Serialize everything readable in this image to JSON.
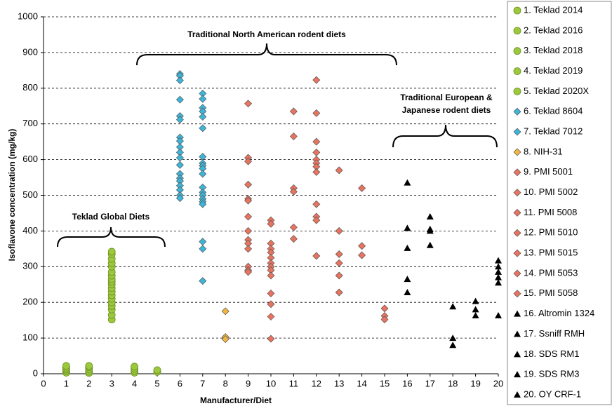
{
  "chart_data": {
    "type": "scatter",
    "x_label": "Manufacturer/Diet",
    "y_label": "Isoflavone concentration (mg/kg)",
    "xlim": [
      0,
      20
    ],
    "xticks": [
      0,
      1,
      2,
      3,
      4,
      5,
      6,
      7,
      8,
      9,
      10,
      11,
      12,
      13,
      14,
      15,
      16,
      17,
      18,
      19,
      20
    ],
    "ylim": [
      0,
      1000
    ],
    "yticks": [
      0,
      100,
      200,
      300,
      400,
      500,
      600,
      700,
      800,
      900,
      1000
    ],
    "grid": true,
    "legend": "right",
    "annotations": [
      "Traditional North American rodent diets",
      "Teklad Global Diets",
      "Traditional European &",
      "Japanese rodent diets"
    ],
    "series": [
      {
        "name": "1. Teklad 2014",
        "color": "#9bc83c",
        "marker": "circle",
        "x": [
          1,
          1,
          1,
          1,
          1
        ],
        "values": [
          3,
          8,
          12,
          17,
          22
        ]
      },
      {
        "name": "2. Teklad 2016",
        "color": "#9bc83c",
        "marker": "circle",
        "x": [
          2,
          2,
          2,
          2,
          2
        ],
        "values": [
          2,
          6,
          12,
          18,
          22
        ]
      },
      {
        "name": "3. Teklad 2018",
        "color": "#9bc83c",
        "marker": "circle",
        "x": [
          3,
          3,
          3,
          3,
          3,
          3,
          3,
          3,
          3,
          3,
          3,
          3,
          3,
          3,
          3,
          3,
          3,
          3,
          3
        ],
        "values": [
          152,
          165,
          180,
          190,
          200,
          210,
          220,
          230,
          240,
          250,
          258,
          265,
          275,
          285,
          300,
          310,
          322,
          335,
          342
        ]
      },
      {
        "name": "4. Teklad 2019",
        "color": "#9bc83c",
        "marker": "circle",
        "x": [
          4,
          4,
          4,
          4
        ],
        "values": [
          3,
          8,
          14,
          20
        ]
      },
      {
        "name": "5. Teklad 2020X",
        "color": "#9bc83c",
        "marker": "circle",
        "x": [
          5,
          5
        ],
        "values": [
          5,
          10
        ]
      },
      {
        "name": "6. Teklad 8604",
        "color": "#3db5d8",
        "marker": "diamond",
        "x": [
          6,
          6,
          6,
          6,
          6,
          6,
          6,
          6,
          6,
          6,
          6,
          6,
          6,
          6,
          6,
          6,
          6,
          6,
          6
        ],
        "values": [
          840,
          835,
          822,
          768,
          722,
          712,
          662,
          652,
          635,
          620,
          605,
          585,
          560,
          548,
          540,
          527,
          515,
          500,
          492
        ]
      },
      {
        "name": "7. Teklad 7012",
        "color": "#3db5d8",
        "marker": "diamond",
        "x": [
          7,
          7,
          7,
          7,
          7,
          7,
          7,
          7,
          7,
          7,
          7,
          7,
          7,
          7,
          7,
          7,
          7,
          7,
          7,
          7
        ],
        "values": [
          785,
          770,
          745,
          735,
          720,
          688,
          608,
          590,
          583,
          575,
          560,
          522,
          508,
          500,
          490,
          482,
          475,
          370,
          350,
          260
        ]
      },
      {
        "name": "8. NIH-31",
        "color": "#f2b540",
        "marker": "diamond",
        "x": [
          8,
          8,
          8
        ],
        "values": [
          175,
          103,
          97
        ]
      },
      {
        "name": "9. PMI 5001",
        "color": "#e8735f",
        "marker": "diamond",
        "x": [
          9,
          9,
          9,
          9,
          9,
          9,
          9,
          9,
          9,
          9,
          9,
          9,
          9,
          9
        ],
        "values": [
          757,
          605,
          595,
          530,
          490,
          485,
          440,
          400,
          375,
          365,
          350,
          300,
          290,
          285
        ]
      },
      {
        "name": "10. PMI 5002",
        "color": "#e8735f",
        "marker": "diamond",
        "x": [
          10,
          10,
          10,
          10,
          10,
          10,
          10,
          10,
          10,
          10,
          10,
          10,
          10,
          10
        ],
        "values": [
          430,
          420,
          365,
          350,
          340,
          325,
          310,
          300,
          290,
          275,
          225,
          195,
          160,
          98
        ]
      },
      {
        "name": "11. PMI 5008",
        "color": "#e8735f",
        "marker": "diamond",
        "x": [
          11,
          11,
          11,
          11,
          11,
          11
        ],
        "values": [
          735,
          665,
          520,
          510,
          410,
          378
        ]
      },
      {
        "name": "12. PMI 5010",
        "color": "#e8735f",
        "marker": "diamond",
        "x": [
          12,
          12,
          12,
          12,
          12,
          12,
          12,
          12,
          12,
          12,
          12,
          12
        ],
        "values": [
          823,
          730,
          650,
          620,
          600,
          590,
          580,
          565,
          475,
          440,
          430,
          330
        ]
      },
      {
        "name": "13. PMI 5015",
        "color": "#e8735f",
        "marker": "diamond",
        "x": [
          13,
          13,
          13,
          13,
          13,
          13
        ],
        "values": [
          570,
          400,
          335,
          310,
          275,
          228
        ]
      },
      {
        "name": "14. PMI 5053",
        "color": "#e8735f",
        "marker": "diamond",
        "x": [
          14,
          14,
          14
        ],
        "values": [
          520,
          358,
          332
        ]
      },
      {
        "name": "15. PMI 5058",
        "color": "#e8735f",
        "marker": "diamond",
        "x": [
          15,
          15,
          15
        ],
        "values": [
          183,
          162,
          152
        ]
      },
      {
        "name": "16. Altromin 1324",
        "color": "#000000",
        "marker": "triangle",
        "x": [
          16,
          16,
          16,
          16,
          16
        ],
        "values": [
          535,
          408,
          352,
          265,
          228
        ]
      },
      {
        "name": "17. Ssniff RMH",
        "color": "#000000",
        "marker": "triangle",
        "x": [
          17,
          17,
          17,
          17
        ],
        "values": [
          440,
          405,
          400,
          360
        ]
      },
      {
        "name": "18. SDS RM1",
        "color": "#000000",
        "marker": "triangle",
        "x": [
          18,
          18,
          18
        ],
        "values": [
          188,
          100,
          80
        ]
      },
      {
        "name": "19. SDS RM3",
        "color": "#000000",
        "marker": "triangle",
        "x": [
          19,
          19,
          19
        ],
        "values": [
          203,
          180,
          163
        ]
      },
      {
        "name": "20. OY CRF-1",
        "color": "#000000",
        "marker": "triangle",
        "x": [
          20,
          20,
          20,
          20,
          20,
          20
        ],
        "values": [
          317,
          300,
          285,
          270,
          255,
          163
        ]
      }
    ]
  }
}
